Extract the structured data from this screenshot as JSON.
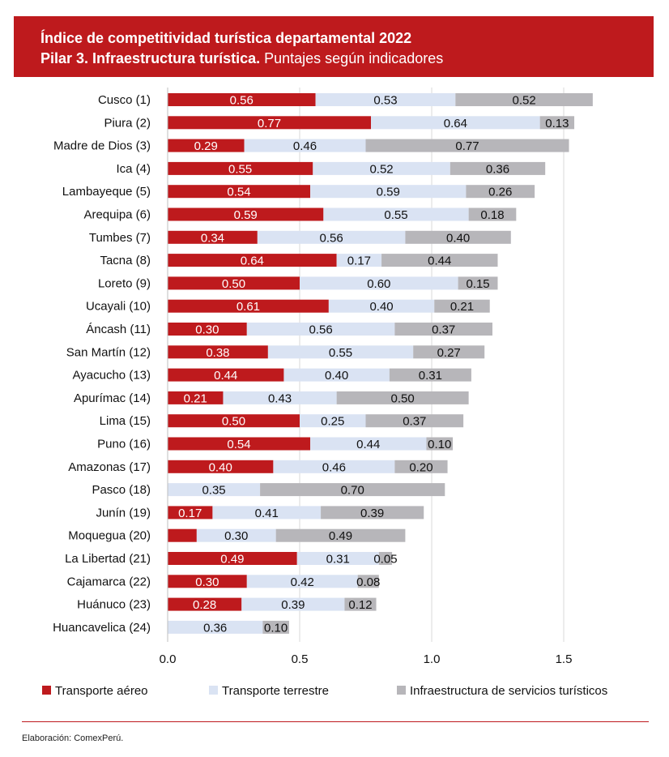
{
  "chart_data": {
    "type": "bar",
    "orientation": "horizontal",
    "stacked": true,
    "title": "Índice de competitividad turística departamental 2022",
    "subtitle_bold": "Pilar 3. Infraestructura turística.",
    "subtitle_rest": "Puntajes según indicadores",
    "categories": [
      "Cusco (1)",
      "Piura (2)",
      "Madre de Dios (3)",
      "Ica (4)",
      "Lambayeque (5)",
      "Arequipa (6)",
      "Tumbes (7)",
      "Tacna (8)",
      "Loreto (9)",
      "Ucayali (10)",
      "Áncash (11)",
      "San Martín (12)",
      "Ayacucho (13)",
      "Apurímac (14)",
      "Lima (15)",
      "Puno (16)",
      "Amazonas (17)",
      "Pasco (18)",
      "Junín (19)",
      "Moquegua (20)",
      "La Libertad (21)",
      "Cajamarca (22)",
      "Huánuco (23)",
      "Huancavelica (24)"
    ],
    "series": [
      {
        "name": "Transporte aéreo",
        "color": "#be1a1d",
        "label_color": "#ffffff",
        "values": [
          0.56,
          0.77,
          0.29,
          0.55,
          0.54,
          0.59,
          0.34,
          0.64,
          0.5,
          0.61,
          0.3,
          0.38,
          0.44,
          0.21,
          0.5,
          0.54,
          0.4,
          0,
          0.17,
          0.11,
          0.49,
          0.3,
          0.28,
          0
        ],
        "labels": [
          "0.56",
          "0.77",
          "0.29",
          "0.55",
          "0.54",
          "0.59",
          "0.34",
          "0.64",
          "0.50",
          "0.61",
          "0.30",
          "0.38",
          "0.44",
          "0.21",
          "0.50",
          "0.54",
          "0.40",
          "",
          "0.17",
          "",
          "0.49",
          "0.30",
          "0.28",
          ""
        ]
      },
      {
        "name": "Transporte terrestre",
        "color": "#dae3f3",
        "label_color": "#111111",
        "values": [
          0.53,
          0.64,
          0.46,
          0.52,
          0.59,
          0.55,
          0.56,
          0.17,
          0.6,
          0.4,
          0.56,
          0.55,
          0.4,
          0.43,
          0.25,
          0.44,
          0.46,
          0.35,
          0.41,
          0.3,
          0.31,
          0.42,
          0.39,
          0.36
        ],
        "labels": [
          "0.53",
          "0.64",
          "0.46",
          "0.52",
          "0.59",
          "0.55",
          "0.56",
          "0.17",
          "0.60",
          "0.40",
          "0.56",
          "0.55",
          "0.40",
          "0.43",
          "0.25",
          "0.44",
          "0.46",
          "0.35",
          "0.41",
          "0.30",
          "0.31",
          "0.42",
          "0.39",
          "0.36"
        ]
      },
      {
        "name": "Infraestructura de servicios turísticos",
        "color": "#b7b6ba",
        "label_color": "#111111",
        "values": [
          0.52,
          0.13,
          0.77,
          0.36,
          0.26,
          0.18,
          0.4,
          0.44,
          0.15,
          0.21,
          0.37,
          0.27,
          0.31,
          0.5,
          0.37,
          0.1,
          0.2,
          0.7,
          0.39,
          0.49,
          0.05,
          0.08,
          0.12,
          0.1
        ],
        "labels": [
          "0.52",
          "0.13",
          "0.77",
          "0.36",
          "0.26",
          "0.18",
          "0.40",
          "0.44",
          "0.15",
          "0.21",
          "0.37",
          "0.27",
          "0.31",
          "0.50",
          "0.37",
          "0.10",
          "0.20",
          "0.70",
          "0.39",
          "0.49",
          "0.05",
          "0.08",
          "0.12",
          "0.10"
        ]
      }
    ],
    "xlim": [
      0,
      1.75
    ],
    "xticks": [
      "0.0",
      "0.5",
      "1.0",
      "1.5"
    ],
    "grid": true,
    "legend": "bottom"
  },
  "footer": "Elaboración: ComexPerú."
}
